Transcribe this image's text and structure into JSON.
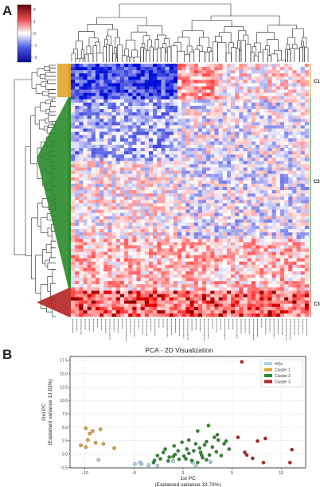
{
  "panels": {
    "a_label": "A",
    "b_label": "B"
  },
  "heatmap": {
    "colorbar_ticks": [
      "2",
      "1",
      "0",
      "-1",
      "-2"
    ],
    "cluster_labels": [
      "C1",
      "C2",
      "C3"
    ],
    "cluster_colors": {
      "C1": "#e0a020",
      "C2": "#2b8a2b",
      "C3": "#c0392b"
    }
  },
  "chart_data": {
    "type": "scatter",
    "title": "PCA - 2D Visualization",
    "xlabel": "1st PC\n(Explained variance 33.79%)",
    "ylabel": "2nd PC\n(Explained variance 13.83%)",
    "xlim": [
      -11.5,
      12.5
    ],
    "ylim": [
      -2.6,
      18.2
    ],
    "xticks": [
      -10,
      -5,
      0,
      5,
      10
    ],
    "yticks": [
      -2.5,
      0.0,
      2.5,
      5.0,
      7.5,
      10.0,
      12.5,
      15.0,
      17.5
    ],
    "ytick_labels": [
      "−2.5",
      "0.0",
      "2.5",
      "5.0",
      "7.5",
      "10.0",
      "12.5",
      "15.0",
      "17.5"
    ],
    "xtick_labels": [
      "−10",
      "−5",
      "0",
      "5",
      "10"
    ],
    "grid": true,
    "legend_position": "top-right",
    "series": [
      {
        "name": "HOs",
        "color": "#a8d4ec",
        "points": [
          [
            -8.6,
            -1.1
          ],
          [
            -4.4,
            -1.6
          ],
          [
            -3.5,
            -2.1
          ],
          [
            -2.6,
            -2.2
          ],
          [
            -4.2,
            -1.9
          ],
          [
            -1.0,
            -1.3
          ],
          [
            1.0,
            -1.6
          ],
          [
            1.3,
            -2.3
          ],
          [
            -4.9,
            -1.9
          ],
          [
            2.8,
            -1.5
          ]
        ]
      },
      {
        "name": "Cluster 1",
        "color": "#e7a33b",
        "points": [
          [
            -9.9,
            4.8
          ],
          [
            -9.2,
            4.3
          ],
          [
            -8.4,
            4.6
          ],
          [
            -10.4,
            1.6
          ],
          [
            -9.7,
            2.6
          ],
          [
            -9.5,
            3.8
          ],
          [
            -8.1,
            1.9
          ],
          [
            -7.0,
            1.1
          ],
          [
            -9.9,
            1.3
          ],
          [
            -8.9,
            2.1
          ]
        ]
      },
      {
        "name": "Cluster 2",
        "color": "#2e8b2e",
        "points": [
          [
            -1.4,
            -0.6
          ],
          [
            -0.8,
            -0.1
          ],
          [
            -2.0,
            0.3
          ],
          [
            0.3,
            -0.9
          ],
          [
            0.6,
            0.1
          ],
          [
            1.1,
            0.6
          ],
          [
            1.7,
            1.1
          ],
          [
            2.2,
            1.7
          ],
          [
            1.5,
            4.3
          ],
          [
            2.6,
            5.3
          ],
          [
            3.2,
            3.1
          ],
          [
            3.6,
            2.6
          ],
          [
            -0.1,
            2.2
          ],
          [
            0.1,
            -0.4
          ],
          [
            -0.5,
            0.6
          ],
          [
            0.9,
            -1.2
          ],
          [
            2.0,
            -0.7
          ],
          [
            2.7,
            -0.2
          ],
          [
            3.4,
            0.4
          ],
          [
            4.2,
            1.9
          ],
          [
            4.7,
            0.9
          ],
          [
            3.0,
            1.3
          ],
          [
            1.3,
            1.9
          ],
          [
            -1.5,
            -1.3
          ],
          [
            -2.3,
            -0.9
          ],
          [
            -3.0,
            -1.6
          ],
          [
            -2.6,
            -0.3
          ],
          [
            -0.4,
            -1.0
          ],
          [
            0.4,
            0.9
          ],
          [
            1.9,
            -0.2
          ],
          [
            2.4,
            2.3
          ],
          [
            3.9,
            -0.3
          ],
          [
            1.5,
            -1.6
          ],
          [
            2.4,
            -1.1
          ],
          [
            -1.8,
            0.9
          ],
          [
            4.4,
            2.4
          ],
          [
            0.6,
            2.6
          ],
          [
            3.5,
            3.6
          ],
          [
            -0.9,
            1.5
          ],
          [
            1.8,
            0.3
          ],
          [
            -2.9,
            -1.2
          ],
          [
            -1.0,
            -0.5
          ]
        ]
      },
      {
        "name": "Cluster 3",
        "color": "#b22222",
        "points": [
          [
            6.0,
            17.2
          ],
          [
            5.6,
            3.1
          ],
          [
            7.6,
            2.4
          ],
          [
            8.4,
            2.9
          ],
          [
            6.3,
            0.3
          ],
          [
            7.1,
            -0.8
          ],
          [
            8.2,
            -1.6
          ],
          [
            11.1,
            0.8
          ],
          [
            10.9,
            -1.6
          ],
          [
            6.5,
            -0.2
          ]
        ]
      }
    ]
  }
}
